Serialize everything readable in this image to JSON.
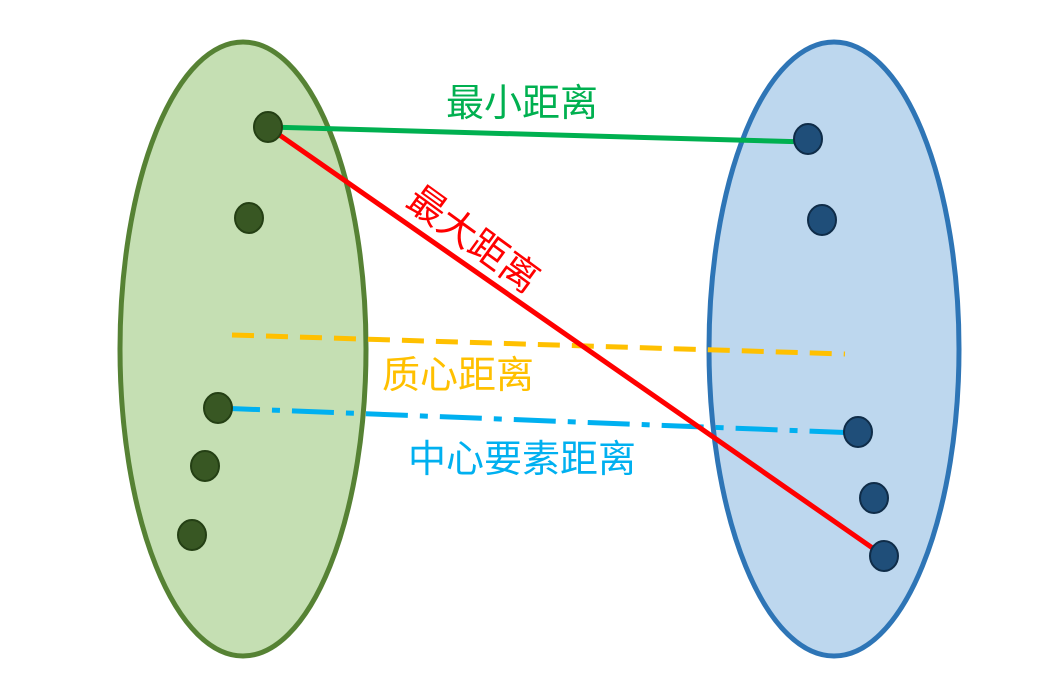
{
  "clusters": {
    "left": {
      "fill": "#c5dfb3",
      "stroke": "#568234",
      "point_fill": "#385723",
      "point_stroke": "#243f14"
    },
    "right": {
      "fill": "#bdd7ee",
      "stroke": "#2e75b6",
      "point_fill": "#1f4e79",
      "point_stroke": "#0f2c48"
    }
  },
  "distances": {
    "min": {
      "label": "最小距离",
      "color": "#00b050",
      "style": "solid"
    },
    "max": {
      "label": "最大距离",
      "color": "#ff0000",
      "style": "solid"
    },
    "centroid": {
      "label": "质心距离",
      "color": "#ffc000",
      "style": "dashed"
    },
    "medoid": {
      "label": "中心要素距离",
      "color": "#00b0f0",
      "style": "dash-dot"
    }
  }
}
